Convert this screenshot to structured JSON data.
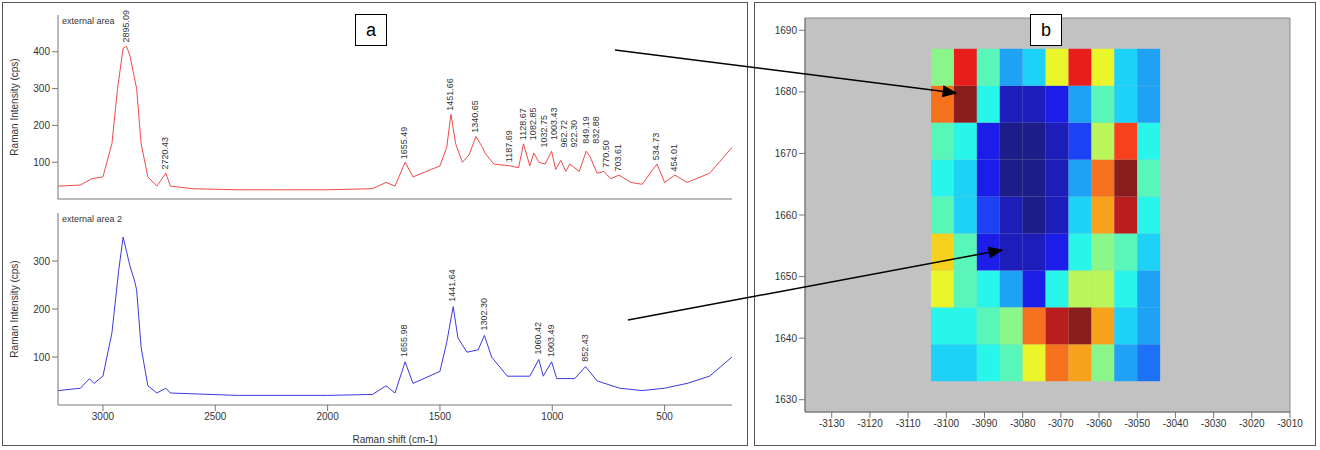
{
  "chart_data": [
    {
      "type": "line",
      "panel_label": "a",
      "title": "external area",
      "ylabel": "Raman Intensity (cps)",
      "tick_labels": "y",
      "xlim": [
        3200,
        200
      ],
      "ylim": [
        0,
        500
      ],
      "yticks": [
        100,
        200,
        300,
        400
      ],
      "x": [
        3200,
        3100,
        3050,
        3000,
        2960,
        2935,
        2910,
        2895,
        2880,
        2860,
        2850,
        2830,
        2800,
        2760,
        2720,
        2700,
        2600,
        2400,
        2200,
        2000,
        1800,
        1740,
        1700,
        1655,
        1620,
        1500,
        1470,
        1451,
        1430,
        1400,
        1370,
        1340,
        1310,
        1300,
        1260,
        1187,
        1150,
        1128,
        1100,
        1082,
        1060,
        1032,
        1003,
        985,
        962,
        940,
        922,
        880,
        849,
        832,
        800,
        770,
        740,
        703,
        650,
        600,
        534,
        500,
        454,
        400,
        300,
        200
      ],
      "series": [
        {
          "color": "#f04a4a",
          "values": [
            35,
            38,
            55,
            60,
            150,
            300,
            410,
            415,
            390,
            330,
            300,
            150,
            60,
            35,
            70,
            35,
            28,
            25,
            25,
            25,
            28,
            45,
            35,
            100,
            60,
            90,
            140,
            230,
            150,
            100,
            120,
            170,
            140,
            125,
            95,
            90,
            85,
            150,
            90,
            125,
            100,
            95,
            130,
            80,
            105,
            75,
            95,
            75,
            130,
            115,
            70,
            75,
            55,
            65,
            45,
            40,
            95,
            45,
            65,
            45,
            70,
            140
          ]
        }
      ],
      "annotations": [
        {
          "x": 2895.09,
          "y": 425,
          "label": "2895.09"
        },
        {
          "x": 2720.43,
          "y": 80,
          "label": "2720.43"
        },
        {
          "x": 1655.49,
          "y": 108,
          "label": "1655.49"
        },
        {
          "x": 1451.66,
          "y": 240,
          "label": "1451.66"
        },
        {
          "x": 1340.65,
          "y": 180,
          "label": "1340.65"
        },
        {
          "x": 1187.69,
          "y": 100,
          "label": "1187.69"
        },
        {
          "x": 1128.67,
          "y": 160,
          "label": "1128.67"
        },
        {
          "x": 1082.85,
          "y": 160,
          "label": "1082.85"
        },
        {
          "x": 1032.75,
          "y": 140,
          "label": "1032.75"
        },
        {
          "x": 1003.43,
          "y": 160,
          "label": "1003.43"
        },
        {
          "x": 962.72,
          "y": 140,
          "label": "962.72"
        },
        {
          "x": 922.3,
          "y": 140,
          "label": "922.30"
        },
        {
          "x": 849.19,
          "y": 150,
          "label": "849.19"
        },
        {
          "x": 832.88,
          "y": 150,
          "label": "832.88"
        },
        {
          "x": 770.5,
          "y": 85,
          "label": "770.50"
        },
        {
          "x": 703.61,
          "y": 75,
          "label": "703.61"
        },
        {
          "x": 534.73,
          "y": 105,
          "label": "534.73"
        },
        {
          "x": 454.01,
          "y": 75,
          "label": "454.01"
        }
      ]
    },
    {
      "type": "line",
      "title": "external area 2",
      "ylabel": "Raman Intensity (cps)",
      "xlabel": "Raman shift (cm-1)",
      "xlim": [
        3200,
        200
      ],
      "ylim": [
        0,
        400
      ],
      "xticks": [
        3000,
        2500,
        2000,
        1500,
        1000,
        500
      ],
      "yticks": [
        100,
        200,
        300
      ],
      "x": [
        3200,
        3100,
        3060,
        3040,
        3000,
        2960,
        2930,
        2910,
        2895,
        2880,
        2860,
        2850,
        2830,
        2800,
        2760,
        2720,
        2700,
        2400,
        2000,
        1800,
        1740,
        1700,
        1655,
        1620,
        1500,
        1470,
        1441,
        1420,
        1380,
        1330,
        1302,
        1270,
        1200,
        1100,
        1060,
        1040,
        1003,
        980,
        900,
        852,
        800,
        700,
        600,
        500,
        400,
        300,
        200
      ],
      "series": [
        {
          "color": "#3a3ae0",
          "values": [
            30,
            35,
            55,
            45,
            60,
            150,
            280,
            350,
            320,
            290,
            260,
            240,
            120,
            40,
            25,
            35,
            25,
            20,
            20,
            22,
            40,
            25,
            90,
            45,
            70,
            130,
            205,
            140,
            110,
            115,
            145,
            100,
            60,
            60,
            95,
            60,
            90,
            55,
            55,
            80,
            50,
            35,
            30,
            35,
            45,
            60,
            100
          ]
        }
      ],
      "annotations": [
        {
          "x": 1655.98,
          "y": 100,
          "label": "1655.98"
        },
        {
          "x": 1441.64,
          "y": 215,
          "label": "1441.64"
        },
        {
          "x": 1302.3,
          "y": 155,
          "label": "1302.30"
        },
        {
          "x": 1060.42,
          "y": 105,
          "label": "1060.42"
        },
        {
          "x": 1003.49,
          "y": 100,
          "label": "1003.49"
        },
        {
          "x": 852.43,
          "y": 90,
          "label": "852.43"
        }
      ]
    },
    {
      "type": "heatmap",
      "panel_label": "b",
      "xlim": [
        -3137,
        -3010
      ],
      "xticks": [
        -3130,
        -3120,
        -3110,
        -3100,
        -3090,
        -3080,
        -3070,
        -3060,
        -3050,
        -3040,
        -3030,
        -3020,
        -3010
      ],
      "ylim": [
        1628,
        1692
      ],
      "yticks": [
        1630,
        1640,
        1650,
        1660,
        1670,
        1680,
        1690
      ],
      "x_edges": [
        -3104,
        -3098,
        -3092,
        -3086,
        -3080,
        -3074,
        -3068,
        -3062,
        -3056,
        -3050,
        -3044
      ],
      "y_edges": [
        1633,
        1639,
        1645,
        1651,
        1657,
        1663,
        1669,
        1675,
        1681,
        1687
      ],
      "z": [
        [
          0.35,
          0.35,
          0.4,
          0.45,
          0.6,
          0.75,
          0.7,
          0.5,
          0.3,
          0.25
        ],
        [
          0.4,
          0.4,
          0.45,
          0.5,
          0.75,
          0.9,
          0.95,
          0.7,
          0.35,
          0.3
        ],
        [
          0.6,
          0.45,
          0.4,
          0.3,
          0.15,
          0.4,
          0.55,
          0.55,
          0.4,
          0.3
        ],
        [
          0.65,
          0.45,
          0.15,
          0.1,
          0.1,
          0.15,
          0.4,
          0.5,
          0.45,
          0.35
        ],
        [
          0.45,
          0.35,
          0.2,
          0.1,
          0.05,
          0.1,
          0.35,
          0.7,
          0.9,
          0.4
        ],
        [
          0.4,
          0.35,
          0.15,
          0.05,
          0.05,
          0.1,
          0.3,
          0.75,
          0.95,
          0.45
        ],
        [
          0.45,
          0.4,
          0.15,
          0.05,
          0.05,
          0.1,
          0.2,
          0.55,
          0.8,
          0.4
        ],
        [
          0.75,
          0.95,
          0.4,
          0.1,
          0.1,
          0.15,
          0.3,
          0.45,
          0.35,
          0.3
        ],
        [
          0.5,
          0.85,
          0.45,
          0.3,
          0.35,
          0.6,
          0.85,
          0.6,
          0.35,
          0.3
        ]
      ]
    }
  ]
}
